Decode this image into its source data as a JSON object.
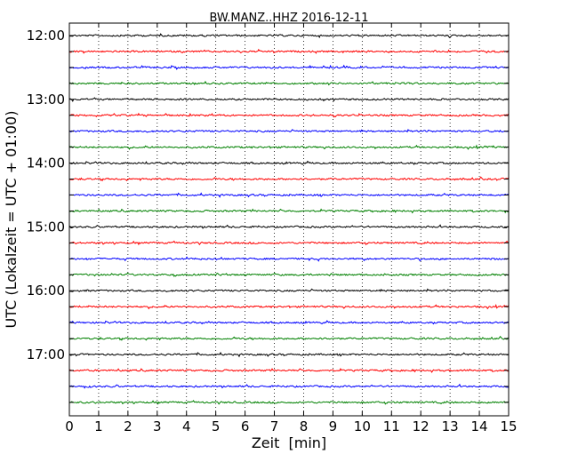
{
  "chart_data": {
    "type": "line",
    "title": "BW.MANZ..HHZ 2016-12-11",
    "xlabel": "Zeit  [min]",
    "ylabel": "UTC (Lokalzeit = UTC + 01:00)",
    "xlim": [
      0,
      15
    ],
    "x_ticks": [
      0,
      1,
      2,
      3,
      4,
      5,
      6,
      7,
      8,
      9,
      10,
      11,
      12,
      13,
      14,
      15
    ],
    "y_tick_labels": [
      "12:00",
      "13:00",
      "14:00",
      "15:00",
      "16:00",
      "17:00"
    ],
    "grid": "vertical dotted",
    "colors": [
      "#000000",
      "#ff0000",
      "#0000ff",
      "#008000"
    ],
    "rows": [
      {
        "start": "12:00",
        "color": "#000000"
      },
      {
        "start": "12:15",
        "color": "#ff0000"
      },
      {
        "start": "12:30",
        "color": "#0000ff"
      },
      {
        "start": "12:45",
        "color": "#008000"
      },
      {
        "start": "13:00",
        "color": "#000000"
      },
      {
        "start": "13:15",
        "color": "#ff0000"
      },
      {
        "start": "13:30",
        "color": "#0000ff"
      },
      {
        "start": "13:45",
        "color": "#008000"
      },
      {
        "start": "14:00",
        "color": "#000000"
      },
      {
        "start": "14:15",
        "color": "#ff0000"
      },
      {
        "start": "14:30",
        "color": "#0000ff"
      },
      {
        "start": "14:45",
        "color": "#008000"
      },
      {
        "start": "15:00",
        "color": "#000000"
      },
      {
        "start": "15:15",
        "color": "#ff0000"
      },
      {
        "start": "15:30",
        "color": "#0000ff"
      },
      {
        "start": "15:45",
        "color": "#008000"
      },
      {
        "start": "16:00",
        "color": "#000000"
      },
      {
        "start": "16:15",
        "color": "#ff0000"
      },
      {
        "start": "16:30",
        "color": "#0000ff"
      },
      {
        "start": "16:45",
        "color": "#008000"
      },
      {
        "start": "17:00",
        "color": "#000000"
      },
      {
        "start": "17:15",
        "color": "#ff0000"
      },
      {
        "start": "17:30",
        "color": "#0000ff"
      },
      {
        "start": "17:45",
        "color": "#008000"
      }
    ]
  }
}
